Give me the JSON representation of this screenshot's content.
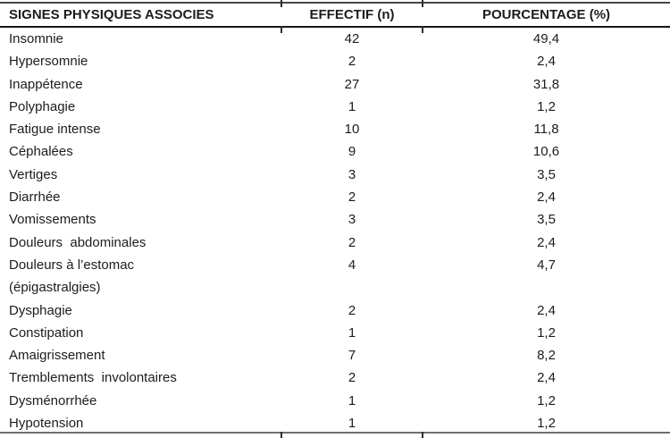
{
  "table": {
    "columns": [
      {
        "label": "SIGNES PHYSIQUES ASSOCIES"
      },
      {
        "label": "EFFECTIF (n)"
      },
      {
        "label": "POURCENTAGE (%)"
      }
    ],
    "rows": [
      {
        "label": "Insomnie",
        "n": "42",
        "pct": "49,4"
      },
      {
        "label": "Hypersomnie",
        "n": "2",
        "pct": "2,4"
      },
      {
        "label": "Inappétence",
        "n": "27",
        "pct": "31,8"
      },
      {
        "label": "Polyphagie",
        "n": "1",
        "pct": "1,2"
      },
      {
        "label": "Fatigue intense",
        "n": "10",
        "pct": "11,8"
      },
      {
        "label": "Céphalées",
        "n": "9",
        "pct": "10,6"
      },
      {
        "label": "Vertiges",
        "n": "3",
        "pct": "3,5"
      },
      {
        "label": "Diarrhée",
        "n": "2",
        "pct": "2,4"
      },
      {
        "label": "Vomissements",
        "n": "3",
        "pct": "3,5"
      },
      {
        "label": "Douleurs  abdominales",
        "n": "2",
        "pct": "2,4"
      },
      {
        "label": "Douleurs à l’estomac",
        "label2": "(épigastralgies)",
        "n": "4",
        "pct": "4,7"
      },
      {
        "label": "Dysphagie",
        "n": "2",
        "pct": "2,4"
      },
      {
        "label": "Constipation",
        "n": "1",
        "pct": "1,2"
      },
      {
        "label": "Amaigrissement",
        "n": "7",
        "pct": "8,2"
      },
      {
        "label": "Tremblements  involontaires",
        "n": "2",
        "pct": "2,4"
      },
      {
        "label": "Dysménorrhée",
        "n": "1",
        "pct": "1,2"
      },
      {
        "label": "Hypotension",
        "n": "1",
        "pct": "1,2"
      }
    ]
  }
}
